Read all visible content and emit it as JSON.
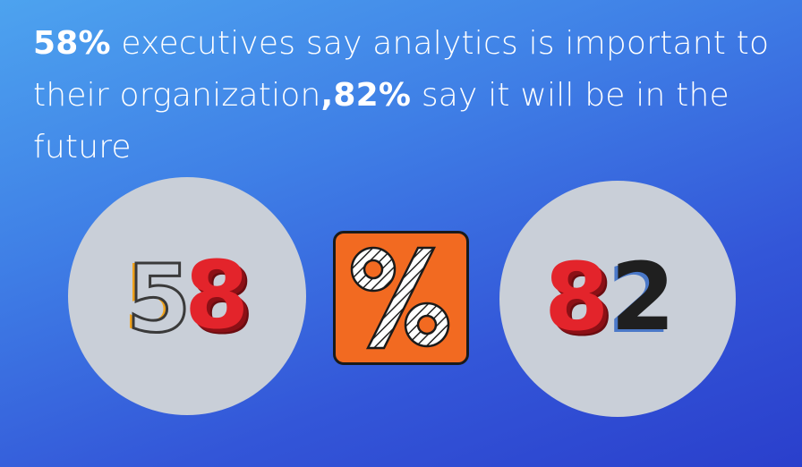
{
  "headline": {
    "part1_bold": "58%",
    "part2": " executives say analytics is important to their organization",
    "part3_bold": ",82%",
    "part4": " say it will be in the future"
  },
  "left_number": {
    "digit1": "5",
    "digit2": "8"
  },
  "right_number": {
    "digit1": "8",
    "digit2": "2"
  },
  "symbol": {
    "glyph": "%",
    "icon": "percent-icon"
  },
  "colors": {
    "background_top": "#4da3ef",
    "background_bottom": "#2a3fcc",
    "circle": "#c9cfd8",
    "accent_red": "#e3242b",
    "accent_orange": "#f26a21",
    "accent_yellow": "#f0a21b"
  }
}
